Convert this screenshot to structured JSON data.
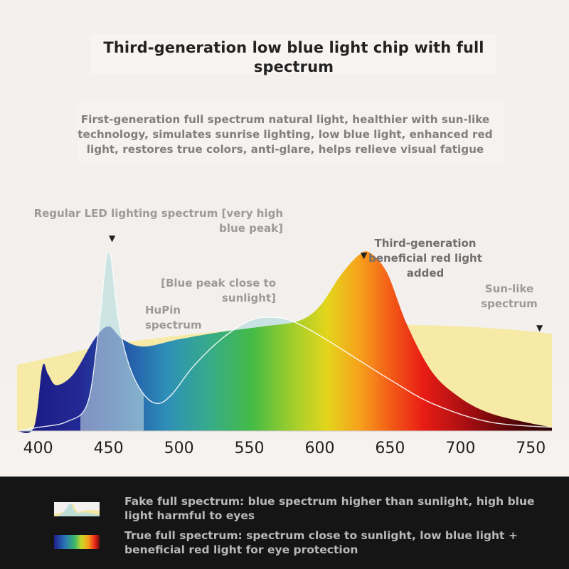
{
  "title": "Third-generation low blue light chip with full spectrum",
  "subtitle": "First-generation full spectrum natural light, healthier with sun-like technology, simulates sunrise lighting, low blue light, enhanced red light, restores true colors, anti-glare, helps relieve visual fatigue",
  "annotations": {
    "regular_led": "Regular LED lighting spectrum [very high blue peak]",
    "blue_peak": "[Blue peak close to sunlight]",
    "hupin": "HuPin spectrum",
    "red_light": "Third-generation beneficial red light added",
    "sun_like": "Sun-like spectrum"
  },
  "legend": {
    "fake": "Fake full spectrum: blue spectrum higher than sunlight, high blue light harmful to eyes",
    "true": "True full spectrum: spectrum close to sunlight, low blue light + beneficial red light for eye protection"
  },
  "chart_data": {
    "type": "area",
    "x_ticks": [
      "400",
      "450",
      "500",
      "550",
      "600",
      "650",
      "700",
      "750"
    ],
    "xlim": [
      385,
      765
    ],
    "ylim": [
      0,
      1
    ],
    "grid": false,
    "series": [
      {
        "name": "Sun-like spectrum",
        "color": "#f7eaa6",
        "points": [
          [
            385,
            0.36
          ],
          [
            420,
            0.42
          ],
          [
            450,
            0.47
          ],
          [
            500,
            0.52
          ],
          [
            550,
            0.555
          ],
          [
            600,
            0.575
          ],
          [
            650,
            0.58
          ],
          [
            700,
            0.57
          ],
          [
            740,
            0.55
          ],
          [
            765,
            0.53
          ]
        ]
      },
      {
        "name": "Regular LED lighting spectrum",
        "color": "#bfe0df",
        "points": [
          [
            385,
            0.0
          ],
          [
            400,
            0.02
          ],
          [
            420,
            0.05
          ],
          [
            435,
            0.15
          ],
          [
            443,
            0.55
          ],
          [
            450,
            0.98
          ],
          [
            457,
            0.6
          ],
          [
            465,
            0.35
          ],
          [
            475,
            0.2
          ],
          [
            485,
            0.15
          ],
          [
            495,
            0.2
          ],
          [
            510,
            0.35
          ],
          [
            530,
            0.5
          ],
          [
            550,
            0.6
          ],
          [
            565,
            0.62
          ],
          [
            580,
            0.6
          ],
          [
            600,
            0.52
          ],
          [
            625,
            0.4
          ],
          [
            650,
            0.28
          ],
          [
            680,
            0.15
          ],
          [
            720,
            0.05
          ],
          [
            765,
            0.02
          ]
        ]
      },
      {
        "name": "HuPin spectrum",
        "color": "spectrum-gradient",
        "points": [
          [
            385,
            0.0
          ],
          [
            397,
            0.02
          ],
          [
            403,
            0.35
          ],
          [
            407,
            0.31
          ],
          [
            413,
            0.25
          ],
          [
            425,
            0.31
          ],
          [
            440,
            0.5
          ],
          [
            450,
            0.57
          ],
          [
            460,
            0.5
          ],
          [
            475,
            0.46
          ],
          [
            500,
            0.5
          ],
          [
            530,
            0.54
          ],
          [
            560,
            0.57
          ],
          [
            585,
            0.6
          ],
          [
            600,
            0.68
          ],
          [
            615,
            0.85
          ],
          [
            628,
            0.96
          ],
          [
            636,
            0.97
          ],
          [
            648,
            0.86
          ],
          [
            662,
            0.58
          ],
          [
            680,
            0.32
          ],
          [
            700,
            0.18
          ],
          [
            720,
            0.1
          ],
          [
            745,
            0.05
          ],
          [
            765,
            0.02
          ]
        ]
      }
    ]
  }
}
